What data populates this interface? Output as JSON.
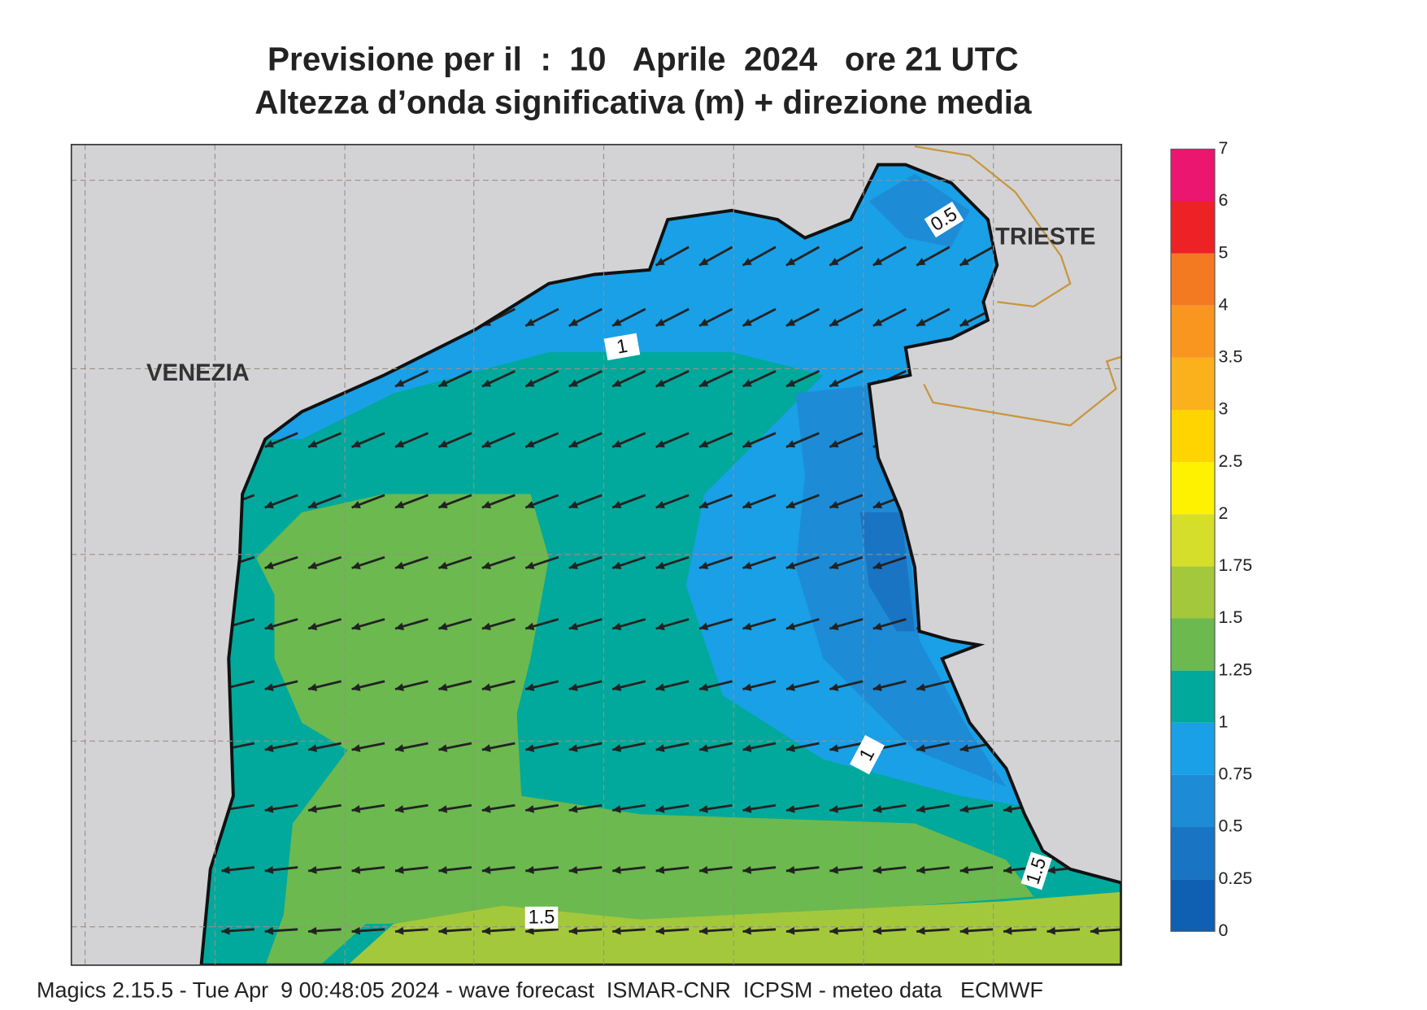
{
  "title": [
    "Previsione per il  :  10   Aprile  2024   ore 21 UTC",
    "Altezza d’onda significativa (m) + direzione media"
  ],
  "places": [
    "VENEZIA",
    "TRIESTE"
  ],
  "contour_labels": [
    "0.5",
    "1",
    "1",
    "1.5",
    "1.5"
  ],
  "colorbar": {
    "ticks": [
      0,
      0.25,
      0.5,
      0.75,
      1,
      1.25,
      1.5,
      1.75,
      2,
      2.5,
      3,
      3.5,
      4,
      5,
      6,
      7
    ],
    "colors": [
      "#0f5fb2",
      "#1a74c4",
      "#1d8bd6",
      "#19a0e6",
      "#00a99b",
      "#6cb94f",
      "#a4c83b",
      "#d5de2b",
      "#fff200",
      "#ffd400",
      "#fbb11b",
      "#f8961f",
      "#f47a22",
      "#ec2227",
      "#eb1670"
    ]
  },
  "footer": "Magics 2.15.5 - Tue Apr  9 00:48:05 2024 - wave forecast  ISMAR-CNR  ICPSM - meteo data   ECMWF"
}
